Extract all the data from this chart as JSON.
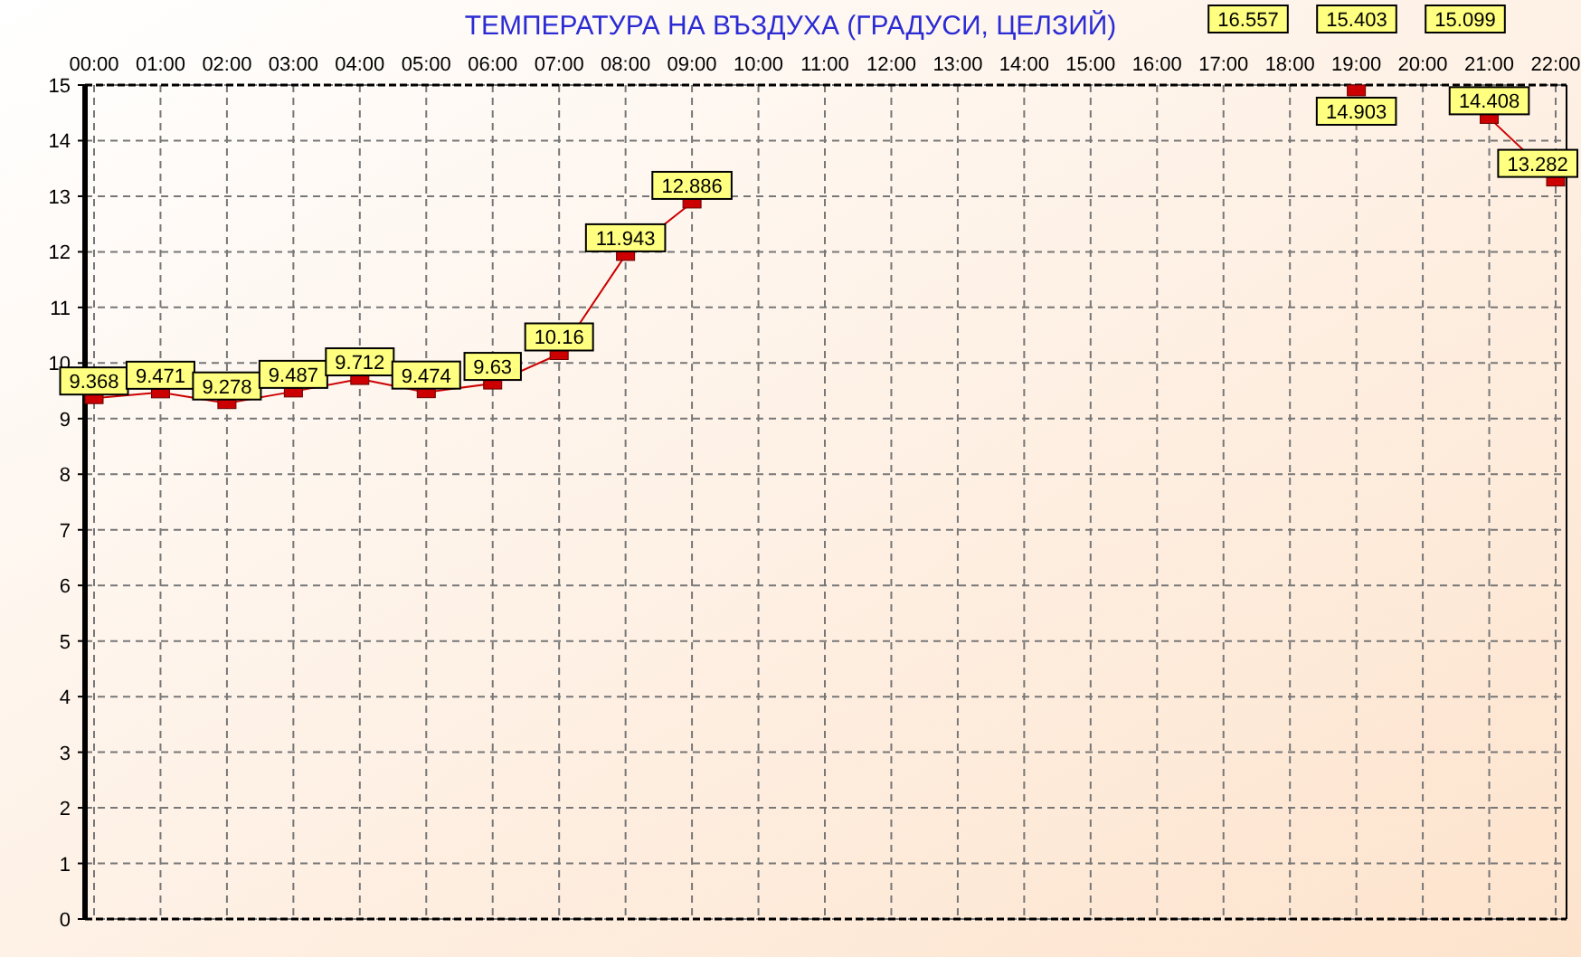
{
  "chart_data": {
    "type": "line",
    "title": "ТЕМПЕРАТУРА НА ВЪЗДУХА  (ГРАДУСИ, ЦЕЛЗИЙ)",
    "categories": [
      "00:00",
      "01:00",
      "02:00",
      "03:00",
      "04:00",
      "05:00",
      "06:00",
      "07:00",
      "08:00",
      "09:00",
      "10:00",
      "11:00",
      "12:00",
      "13:00",
      "14:00",
      "15:00",
      "16:00",
      "17:00",
      "18:00",
      "19:00",
      "20:00",
      "21:00",
      "22:00"
    ],
    "series": [
      {
        "color": "#cc0000",
        "values": [
          9.368,
          9.471,
          9.278,
          9.487,
          9.712,
          9.474,
          9.63,
          10.16,
          11.943,
          12.886,
          null,
          null,
          null,
          null,
          null,
          null,
          null,
          null,
          null,
          14.903,
          null,
          14.408,
          13.282
        ],
        "value_labels": [
          "9.368",
          "9.471",
          "9.278",
          "9.487",
          "9.712",
          "9.474",
          "9.63",
          "10.16",
          "11.943",
          "12.886",
          null,
          null,
          null,
          null,
          null,
          null,
          null,
          null,
          null,
          "14.903",
          null,
          "14.408",
          "13.282"
        ]
      }
    ],
    "annotations": [
      "16.557",
      "15.403",
      "15.099"
    ],
    "ylim": [
      0,
      15
    ],
    "yticks": [
      0,
      1,
      2,
      3,
      4,
      5,
      6,
      7,
      8,
      9,
      10,
      11,
      12,
      13,
      14,
      15
    ],
    "grid": true,
    "marker": "square",
    "line_style": "solid"
  }
}
